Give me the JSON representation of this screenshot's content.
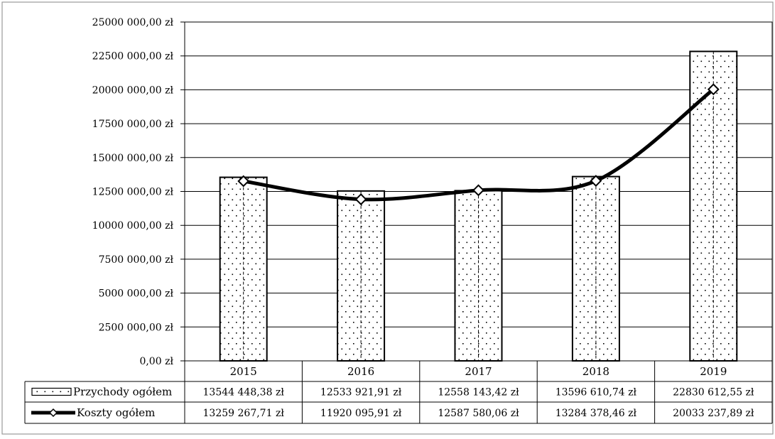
{
  "chart_data": {
    "type": "bar",
    "categories": [
      "2015",
      "2016",
      "2017",
      "2018",
      "2019"
    ],
    "y_ticks": [
      "0,00 zł",
      "2500 000,00 zł",
      "5000 000,00 zł",
      "7500 000,00 zł",
      "10000 000,00 zł",
      "12500 000,00 zł",
      "15000 000,00 zł",
      "17500 000,00 zł",
      "20000 000,00 zł",
      "22500 000,00 zł",
      "25000 000,00 zł"
    ],
    "ylim": [
      0,
      25000000
    ],
    "grid": true,
    "legend": "data-table",
    "series": [
      {
        "name": "Przychody ogółem",
        "type": "bar",
        "values": [
          13544448.38,
          12533921.91,
          12558143.42,
          13596610.74,
          22830612.55
        ],
        "labels": [
          "13544 448,38 zł",
          "12533 921,91 zł",
          "12558 143,42 zł",
          "13596 610,74 zł",
          "22830 612,55 zł"
        ]
      },
      {
        "name": "Koszty ogółem",
        "type": "line",
        "values": [
          13259267.71,
          11920095.91,
          12587580.06,
          13284378.46,
          20033237.89
        ],
        "labels": [
          "13259 267,71 zł",
          "11920 095,91 zł",
          "12587 580,06 zł",
          "13284 378,46 zł",
          "20033 237,89 zł"
        ]
      }
    ]
  }
}
